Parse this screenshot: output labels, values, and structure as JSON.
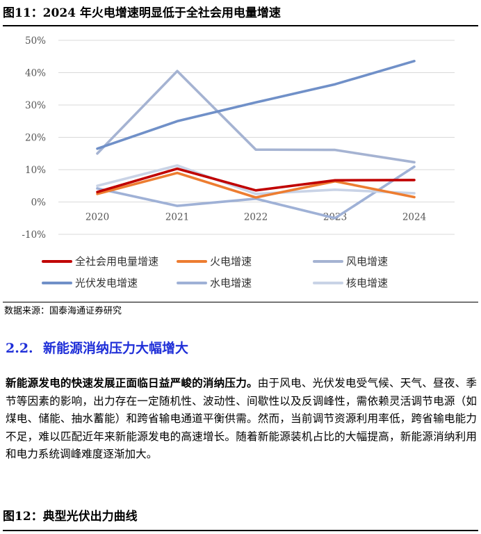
{
  "figure11": {
    "title": "图11：2024 年火电增速明显低于全社会用电量增速"
  },
  "chart_data": {
    "type": "line",
    "x": [
      "2020",
      "2021",
      "2022",
      "2023",
      "2024"
    ],
    "ylim": [
      -10,
      50
    ],
    "yticks": [
      "50%",
      "40%",
      "30%",
      "20%",
      "10%",
      "0%",
      "-10%"
    ],
    "ytick_values": [
      50,
      40,
      30,
      20,
      10,
      0,
      -10
    ],
    "grid": true,
    "legend": "bottom",
    "series": [
      {
        "name": "全社会用电量增速",
        "color": "#c00000",
        "values": [
          3.1,
          10.3,
          3.6,
          6.7,
          6.8
        ]
      },
      {
        "name": "火电增速",
        "color": "#ed7d31",
        "values": [
          2.5,
          9.0,
          1.4,
          6.4,
          1.5
        ]
      },
      {
        "name": "风电增速",
        "color": "#a5b3d2",
        "values": [
          15.0,
          40.5,
          16.2,
          16.1,
          12.3
        ]
      },
      {
        "name": "光伏发电增速",
        "color": "#7090c8",
        "values": [
          16.5,
          25.0,
          30.8,
          36.4,
          43.6
        ]
      },
      {
        "name": "水电增速",
        "color": "#9fb1d6",
        "values": [
          4.2,
          -1.2,
          1.0,
          -5.0,
          10.9
        ]
      },
      {
        "name": "核电增速",
        "color": "#c9d3e6",
        "values": [
          5.0,
          11.3,
          2.5,
          3.8,
          2.7
        ]
      }
    ]
  },
  "source": "数据来源：国泰海通证券研究",
  "section": {
    "number": "2.2.",
    "title": "新能源消纳压力大幅增大"
  },
  "paragraph": {
    "lead": "新能源发电的快速发展正面临日益严峻的消纳压力。",
    "body": "由于风电、光伏发电受气候、天气、昼夜、季节等因素的影响，出力存在一定随机性、波动性、间歇性以及反调峰性，需依赖灵活调节电源（如煤电、储能、抽水蓄能）和跨省输电通道平衡供需。然而，当前调节资源利用率低，跨省输电能力不足，难以匹配近年来新能源发电的高速增长。随着新能源装机占比的大幅提高，新能源消纳利用和电力系统调峰难度逐渐加大。"
  },
  "figure12": {
    "title": "图12：典型光伏出力曲线"
  }
}
